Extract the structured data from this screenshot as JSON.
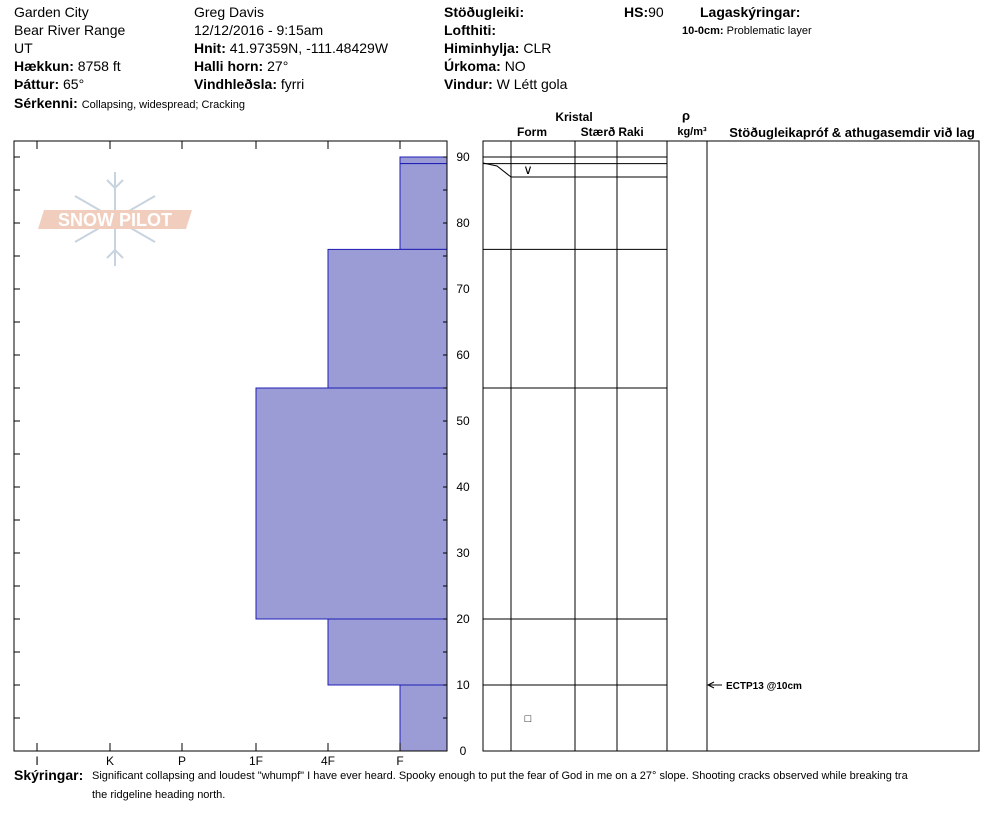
{
  "header": {
    "location": "Garden City",
    "range": "Bear River Range",
    "state": "UT",
    "elevation_label": "Hækkun:",
    "elevation": "8758 ft",
    "aspect_label": "Þáttur:",
    "aspect": "65°",
    "features_label": "Sérkenni:",
    "features": "Collapsing, widespread;  Cracking",
    "observer": "Greg Davis",
    "datetime": "12/12/2016 - 9:15am",
    "coords_label": "Hnit:",
    "coords": "41.97359N, -111.48429W",
    "slope_label": "Halli horn:",
    "slope": "27°",
    "wind_loading_label": "Vindhleðsla:",
    "wind_loading": "fyrri",
    "stability_label": "Stöðugleiki:",
    "air_temp_label": "Lofthiti:",
    "sky_label": "Himinhylja:",
    "sky": "CLR",
    "precip_label": "Úrkoma:",
    "precip": "NO",
    "wind_label": "Vindur:",
    "wind": "W Létt gola",
    "hs_label": "HS:",
    "hs": "90",
    "legend_label": "Lagaskýringar:",
    "legend_item_label": "10-0cm:",
    "legend_item": "Problematic layer"
  },
  "logo_text": "SNOW PILOT",
  "table_headers": {
    "crystal": "Kristal",
    "form": "Form",
    "size": "Stærð",
    "moisture": "Raki",
    "density_symbol": "ρ",
    "density_unit": "kg/m³",
    "tests": "Stöðugleikapróf & athugasemdir við lag"
  },
  "test_result": "ECTP13 @10cm",
  "comments_label": "Skýringar:",
  "comments_line1": "Significant collapsing and loudest \"whumpf\" I have ever heard. Spooky enough to put the fear of God in me on a 27° slope. Shooting cracks observed while breaking tra",
  "comments_line2": "the ridgeline heading north.",
  "colors": {
    "hardness_fill": "#9b9bd6",
    "hardness_stroke": "#1f1fb5"
  },
  "chart_data": {
    "type": "bar",
    "orientation": "horizontal-step",
    "title": "",
    "ylabel": "",
    "xlabel": "",
    "x_categories": [
      "I",
      "K",
      "P",
      "1F",
      "4F",
      "F"
    ],
    "y_ticks": [
      0,
      10,
      20,
      30,
      40,
      50,
      60,
      70,
      80,
      90
    ],
    "ylim": [
      0,
      90
    ],
    "layers": [
      {
        "top": 90,
        "bottom": 89,
        "hardness": "F"
      },
      {
        "top": 89,
        "bottom": 76,
        "hardness": "F"
      },
      {
        "top": 76,
        "bottom": 55,
        "hardness": "4F"
      },
      {
        "top": 55,
        "bottom": 20,
        "hardness": "1F"
      },
      {
        "top": 20,
        "bottom": 10,
        "hardness": "4F"
      },
      {
        "top": 10,
        "bottom": 0,
        "hardness": "F"
      }
    ],
    "grain_forms": [
      {
        "depth": 88,
        "symbol": "∨"
      },
      {
        "depth": 5,
        "symbol": "□"
      }
    ]
  }
}
